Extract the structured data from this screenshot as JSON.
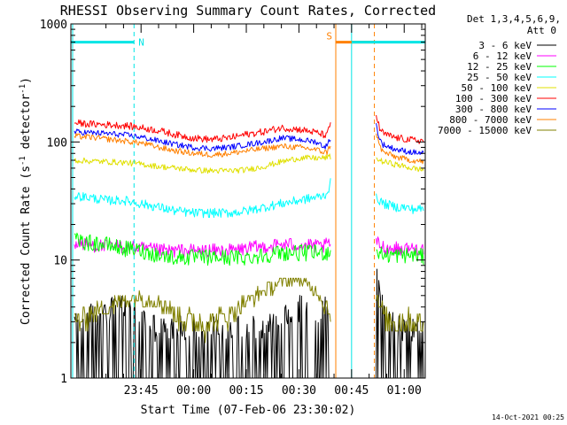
{
  "chart_data": {
    "type": "line",
    "title": "RHESSI Observing Summary Count Rates, Corrected",
    "xlabel": "Start Time (07-Feb-06 23:30:02)",
    "ylabel": "Corrected Count Rate (s⁻¹ detector⁻¹)",
    "ylabel_main": "Corrected Count Rate (s",
    "ylabel_mid": " detector",
    "ylabel_end": ")",
    "ylabel_sup": "-1",
    "yscale": "log",
    "ylim": [
      1,
      1000
    ],
    "xlim_minutes": [
      -5,
      96
    ],
    "x_ticks": [
      "23:45",
      "00:00",
      "00:15",
      "00:30",
      "00:45",
      "01:00"
    ],
    "x_tick_minutes": [
      15,
      30,
      45,
      60,
      75,
      90
    ],
    "y_tick_labels": [
      "1",
      "10",
      "100",
      "1000"
    ],
    "legend_header": [
      "Det 1,3,4,5,6,9,",
      "Att 0"
    ],
    "legend_placement": "right",
    "timestamp": "14-Oct-2021 00:25",
    "annotations": {
      "N": {
        "label": "N",
        "color": "#00e5e5",
        "x_start": -5,
        "x_end": 13
      },
      "S": {
        "label": "S",
        "color": "#ff8000",
        "x_start": 70.5,
        "x_end": 81.5
      },
      "N2": {
        "color": "#00e5e5",
        "x_start": 75,
        "x_end": 96
      },
      "level": 700
    },
    "vlines": [
      {
        "x": -4.5,
        "color": "#00e5e5",
        "style": "solid"
      },
      {
        "x": 13,
        "color": "#00e5e5",
        "style": "dashed"
      },
      {
        "x": 70.5,
        "color": "#ff8000",
        "style": "solid"
      },
      {
        "x": 75,
        "color": "#00e5e5",
        "style": "solid"
      },
      {
        "x": 81.5,
        "color": "#ff8000",
        "style": "dashed"
      },
      {
        "x": 96,
        "color": "#00e5e5",
        "style": "dashed"
      }
    ],
    "x": [
      -4,
      0,
      5,
      10,
      15,
      20,
      25,
      30,
      35,
      40,
      45,
      50,
      55,
      60,
      65,
      67,
      68,
      69,
      82,
      83,
      84,
      86,
      88,
      90,
      92,
      94,
      95.5
    ],
    "series": [
      {
        "name": "3 - 6 keV",
        "color": "#000000",
        "noise": 0,
        "values": [
          1.5,
          1.5,
          1.8,
          1.8,
          1.5,
          1.2,
          1.2,
          1.2,
          1.2,
          1.2,
          1.2,
          1.2,
          1.8,
          1.8,
          1.8,
          1.8,
          1.8,
          1.8,
          3.5,
          2.5,
          1.8,
          1.5,
          1.2,
          1.2,
          1.2,
          1.2,
          1.2
        ]
      },
      {
        "name": "6 - 12 keV",
        "color": "#ff00ff",
        "noise": 0.06,
        "values": [
          14,
          13.5,
          13,
          13,
          12.5,
          12,
          12,
          12,
          12,
          12,
          12.5,
          13,
          13.5,
          13.5,
          13,
          13,
          13.5,
          14,
          14,
          13.5,
          13,
          12.5,
          12.5,
          12.5,
          12.5,
          12.5,
          12.5
        ]
      },
      {
        "name": "12 - 25 keV",
        "color": "#00ff00",
        "noise": 0.07,
        "values": [
          14.5,
          14,
          13.5,
          12.5,
          12,
          11,
          10.5,
          10.5,
          10.5,
          10.5,
          10.5,
          11,
          11.5,
          11.5,
          11.5,
          11.5,
          11.5,
          12,
          12,
          11.5,
          11,
          11,
          11,
          11,
          11,
          11,
          10.5
        ]
      },
      {
        "name": "25 - 50 keV",
        "color": "#00ffff",
        "noise": 0.04,
        "values": [
          35,
          34,
          32,
          32,
          30,
          28,
          26,
          25,
          25,
          25,
          26,
          28,
          30,
          32,
          34,
          35,
          37,
          45,
          34,
          32,
          30,
          29,
          28,
          28,
          27,
          27,
          27
        ]
      },
      {
        "name": "50 - 100 keV",
        "color": "#e0e000",
        "noise": 0.025,
        "values": [
          70,
          69,
          68,
          67,
          65,
          62,
          60,
          58,
          57,
          57,
          58,
          62,
          68,
          73,
          73,
          73,
          74,
          75,
          72,
          70,
          68,
          66,
          64,
          62,
          60,
          59,
          58
        ]
      },
      {
        "name": "100 - 300 keV",
        "color": "#ff0000",
        "noise": 0.03,
        "values": [
          145,
          142,
          140,
          138,
          132,
          125,
          115,
          108,
          105,
          108,
          116,
          122,
          132,
          128,
          120,
          115,
          113,
          145,
          170,
          130,
          118,
          112,
          108,
          106,
          104,
          103,
          102
        ]
      },
      {
        "name": "300 - 800 keV",
        "color": "#0000ff",
        "noise": 0.025,
        "values": [
          122,
          120,
          118,
          115,
          110,
          102,
          95,
          90,
          88,
          90,
          95,
          100,
          108,
          105,
          100,
          92,
          92,
          110,
          140,
          105,
          95,
          90,
          86,
          84,
          82,
          81,
          80
        ]
      },
      {
        "name": "800 - 7000 keV",
        "color": "#ff8000",
        "noise": 0.025,
        "values": [
          112,
          110,
          106,
          102,
          98,
          90,
          84,
          80,
          78,
          80,
          84,
          88,
          92,
          90,
          86,
          82,
          82,
          95,
          120,
          92,
          82,
          78,
          74,
          72,
          70,
          69,
          68
        ]
      },
      {
        "name": "7000 - 15000 keV",
        "color": "#808000",
        "noise": 0,
        "values": [
          3,
          3.5,
          4,
          4.5,
          5,
          4.5,
          3.5,
          3,
          3,
          3.5,
          4.5,
          5.5,
          6.5,
          7,
          5.5,
          4.5,
          4,
          3.5,
          5,
          4,
          3.5,
          3,
          3,
          3,
          3,
          3,
          3
        ]
      }
    ]
  }
}
